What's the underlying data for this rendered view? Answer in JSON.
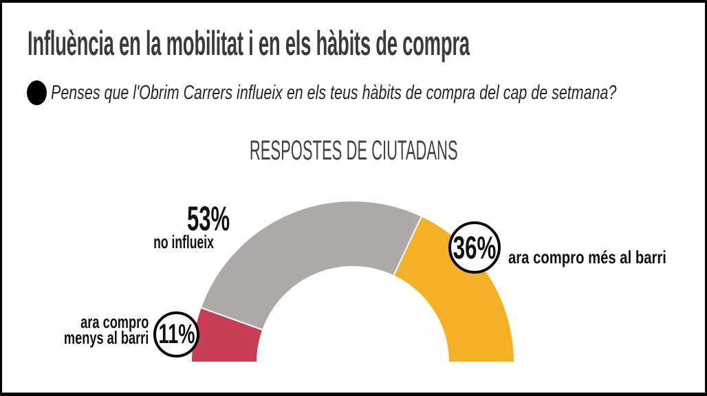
{
  "header": {
    "title": "Influència en la mobilitat i en els hàbits de compra",
    "question": "Penses que l'Obrim Carrers influeix en els teus hàbits de compra del cap de setmana?"
  },
  "section": {
    "title": "RESPOSTES DE CIUTADANS"
  },
  "chart_data": {
    "type": "pie",
    "subtype": "half_donut_gauge",
    "title": "RESPOSTES DE CIUTADANS",
    "unit": "percent",
    "sweep_deg": 180,
    "direction": "left_to_right",
    "inner_radius_ratio": 0.59,
    "segments": [
      {
        "label": "ara compro menys al barri",
        "value": 11,
        "color": "#CA3E54"
      },
      {
        "label": "no influeix",
        "value": 53,
        "color": "#AEAAA7"
      },
      {
        "label": "ara compro més al barri",
        "value": 36,
        "color": "#F4B125"
      }
    ]
  },
  "callouts": {
    "gray": {
      "pct": "53%",
      "text": "no influeix"
    },
    "red": {
      "pct": "11%",
      "text_line1": "ara compro",
      "text_line2": "menys al barri"
    },
    "yellow": {
      "pct": "36%",
      "text": "ara compro més al barri"
    }
  },
  "colors": {
    "segment_red": "#CA3E54",
    "segment_gray": "#AEAAA7",
    "segment_yellow": "#F4B125",
    "title_text": "#3A3A3A",
    "frame_border": "#000000"
  }
}
